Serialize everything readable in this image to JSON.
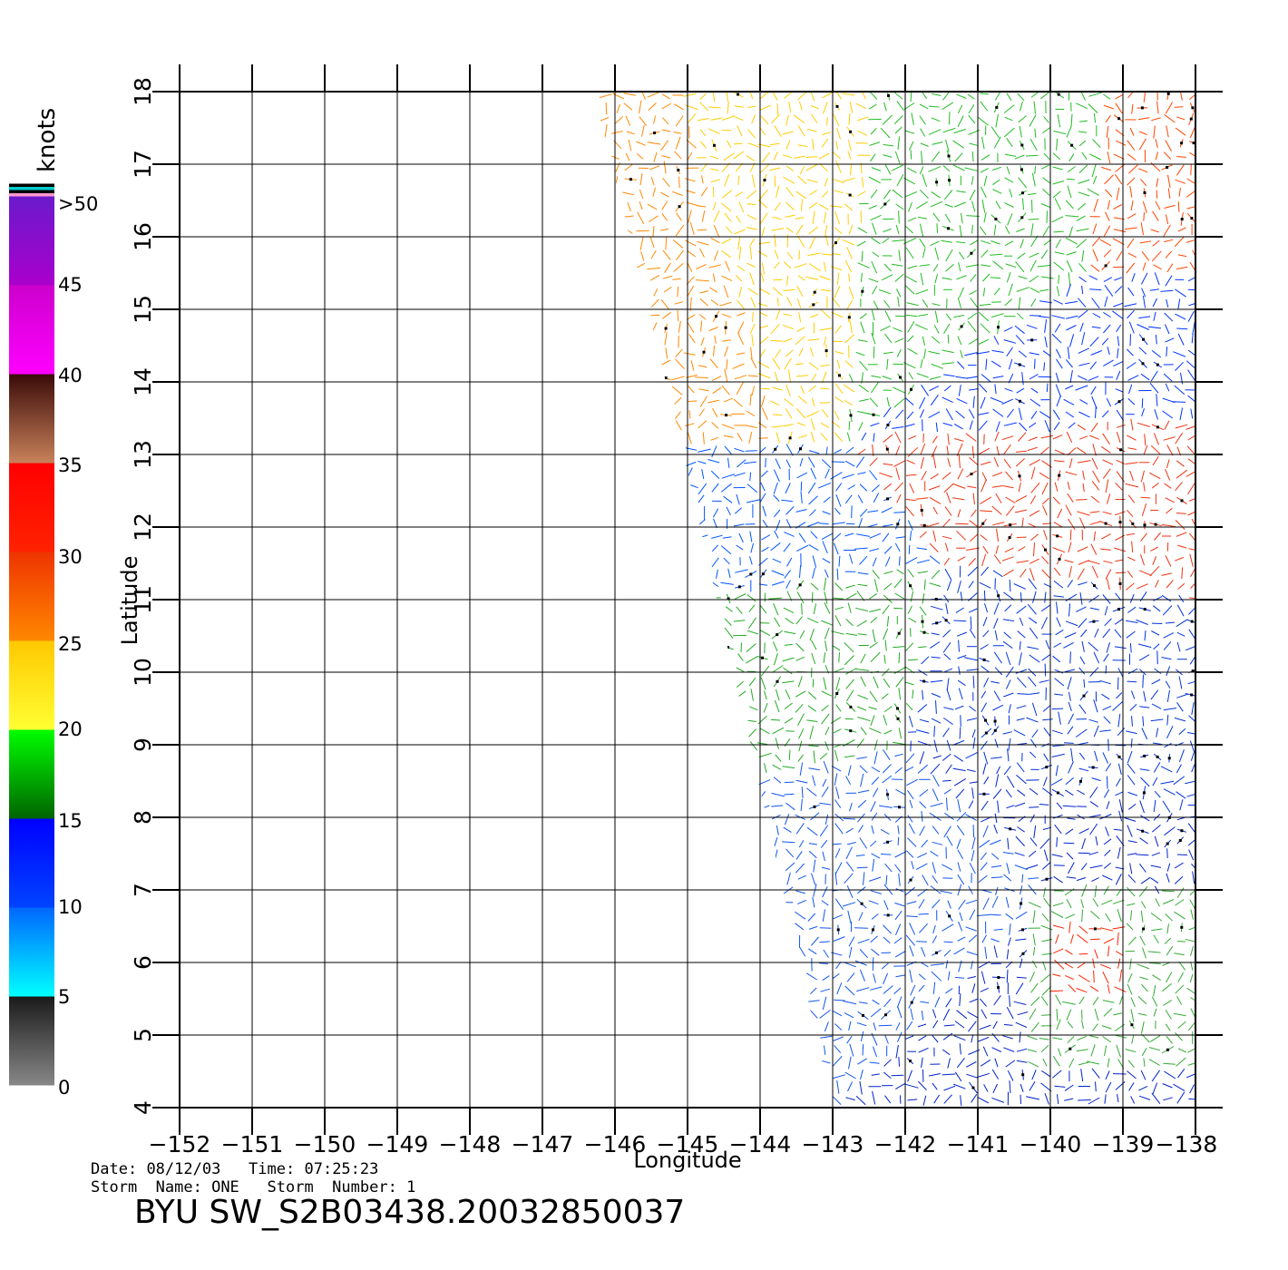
{
  "colorbar": {
    "unit_label": "knots",
    "tick_labels": [
      ">50",
      "45",
      "40",
      "35",
      "30",
      "25",
      "20",
      "15",
      "10",
      "5",
      "0"
    ],
    "bands": [
      {
        "from": 0,
        "to": 5,
        "colors": [
          "#888888",
          "#1a1a1a"
        ]
      },
      {
        "from": 5,
        "to": 10,
        "colors": [
          "#00ffff",
          "#0066ff"
        ]
      },
      {
        "from": 10,
        "to": 15,
        "colors": [
          "#0044ff",
          "#0000ff"
        ]
      },
      {
        "from": 15,
        "to": 20,
        "colors": [
          "#006400",
          "#00ff00"
        ]
      },
      {
        "from": 20,
        "to": 25,
        "colors": [
          "#ffff33",
          "#ffc800"
        ]
      },
      {
        "from": 25,
        "to": 30,
        "colors": [
          "#ff8800",
          "#ee3300"
        ]
      },
      {
        "from": 30,
        "to": 35,
        "colors": [
          "#ff2200",
          "#ff0000"
        ]
      },
      {
        "from": 35,
        "to": 40,
        "colors": [
          "#c8825a",
          "#3a0a08"
        ]
      },
      {
        "from": 40,
        "to": 45,
        "colors": [
          "#ff00ff",
          "#cc00cc"
        ]
      },
      {
        "from": 45,
        "to": 50,
        "colors": [
          "#aa00cc",
          "#6a1acc"
        ]
      }
    ],
    "cap_colors": [
      "#ff99cc",
      "#000000",
      "#00cccc",
      "#000000"
    ]
  },
  "map": {
    "xlabel": "Longitude",
    "ylabel": "Latitude",
    "lon_range": [
      -152,
      -138
    ],
    "lat_range": [
      4,
      18
    ],
    "lon_ticks": [
      "−152",
      "−151",
      "−150",
      "−149",
      "−148",
      "−147",
      "−146",
      "−145",
      "−144",
      "−143",
      "−142",
      "−141",
      "−140",
      "−139",
      "−138"
    ],
    "lat_ticks": [
      "4",
      "5",
      "6",
      "7",
      "8",
      "9",
      "10",
      "11",
      "12",
      "13",
      "14",
      "15",
      "16",
      "17",
      "18"
    ],
    "swath_outline_lonlat": [
      [
        -146.3,
        18
      ],
      [
        -138,
        18
      ],
      [
        -138,
        4
      ],
      [
        -143,
        4
      ],
      [
        -145.1,
        13.2
      ]
    ],
    "speed_regions": [
      {
        "polygon": [
          [
            -146.3,
            18
          ],
          [
            -145.1,
            18
          ],
          [
            -143.7,
            13.0
          ],
          [
            -145.1,
            13.2
          ]
        ],
        "speed": 27,
        "color": "#ff8800"
      },
      {
        "polygon": [
          [
            -145.1,
            18
          ],
          [
            -142.5,
            18
          ],
          [
            -142.8,
            13.2
          ],
          [
            -143.7,
            13.0
          ]
        ],
        "speed": 22,
        "color": "#ffcc00"
      },
      {
        "polygon": [
          [
            -142.5,
            18
          ],
          [
            -139.2,
            18
          ],
          [
            -139.5,
            15.5
          ],
          [
            -142.8,
            13.2
          ]
        ],
        "speed": 18,
        "color": "#22bb22"
      },
      {
        "polygon": [
          [
            -139.2,
            18
          ],
          [
            -138,
            18
          ],
          [
            -138,
            15.5
          ],
          [
            -139.5,
            15.5
          ]
        ],
        "speed": 28,
        "color": "#ff4400"
      },
      {
        "polygon": [
          [
            -142.8,
            13.2
          ],
          [
            -139.5,
            15.5
          ],
          [
            -138,
            15.5
          ],
          [
            -138,
            13.5
          ]
        ],
        "speed": 12,
        "color": "#0033ff"
      },
      {
        "polygon": [
          [
            -145.1,
            13.2
          ],
          [
            -142.8,
            13.2
          ],
          [
            -141.5,
            11.5
          ],
          [
            -144.8,
            11.0
          ]
        ],
        "speed": 13,
        "color": "#0055ff"
      },
      {
        "polygon": [
          [
            -142.8,
            13.2
          ],
          [
            -138,
            13.5
          ],
          [
            -138,
            11.0
          ],
          [
            -141.5,
            11.5
          ]
        ],
        "speed": 30,
        "color": "#ee3311"
      },
      {
        "polygon": [
          [
            -144.8,
            11.0
          ],
          [
            -141.5,
            11.5
          ],
          [
            -142.0,
            9.0
          ],
          [
            -144.2,
            8.5
          ]
        ],
        "speed": 19,
        "color": "#22aa22"
      },
      {
        "polygon": [
          [
            -141.5,
            11.5
          ],
          [
            -138,
            11.0
          ],
          [
            -138,
            8.0
          ],
          [
            -142.0,
            9.0
          ]
        ],
        "speed": 11,
        "color": "#0033dd"
      },
      {
        "polygon": [
          [
            -144.2,
            8.5
          ],
          [
            -142.0,
            9.0
          ],
          [
            -140.0,
            7.0
          ],
          [
            -143,
            4
          ]
        ],
        "speed": 10,
        "color": "#1155ee"
      },
      {
        "polygon": [
          [
            -142.0,
            9.0
          ],
          [
            -138,
            8.0
          ],
          [
            -138,
            4
          ],
          [
            -143,
            4
          ],
          [
            -140.0,
            7.0
          ]
        ],
        "speed": 14,
        "color": "#0022cc"
      },
      {
        "polygon": [
          [
            -140.2,
            7.0
          ],
          [
            -138,
            7.0
          ],
          [
            -138,
            4.5
          ],
          [
            -140.4,
            4.5
          ]
        ],
        "speed": 21,
        "color": "#33aa33"
      },
      {
        "polygon": [
          [
            -140.0,
            6.5
          ],
          [
            -139.0,
            6.5
          ],
          [
            -139.0,
            5.6
          ],
          [
            -140.0,
            5.6
          ]
        ],
        "speed": 32,
        "color": "#ff2200"
      }
    ]
  },
  "info": {
    "date_label": "Date:",
    "date_value": "08/12/03",
    "time_label": "Time:",
    "time_value": "07:25:23",
    "storm_name_label": "Storm  Name:",
    "storm_name_value": "ONE",
    "storm_number_label": "Storm  Number:",
    "storm_number_value": "1"
  },
  "title": "BYU  SW_S2B03438.20032850037"
}
